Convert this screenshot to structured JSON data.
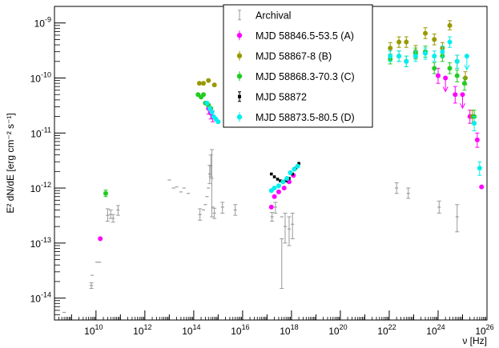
{
  "chart_data": {
    "type": "scatter",
    "title": "",
    "xlabel": "ν [Hz]",
    "ylabel": "E² dN/dE [erg cm⁻² s⁻¹]",
    "x_scale": "log",
    "y_scale": "log",
    "xlim": [
      200000000.0,
      1e+26
    ],
    "ylim": [
      4e-15,
      2e-09
    ],
    "grid": false,
    "legend_position": "top-center",
    "x_tick_labels": [
      {
        "exp": 10,
        "label": "10^10"
      },
      {
        "exp": 12,
        "label": "10^12"
      },
      {
        "exp": 14,
        "label": "10^14"
      },
      {
        "exp": 16,
        "label": "10^16"
      },
      {
        "exp": 18,
        "label": "10^18"
      },
      {
        "exp": 20,
        "label": "10^20"
      },
      {
        "exp": 22,
        "label": "10^22"
      },
      {
        "exp": 24,
        "label": "10^24"
      },
      {
        "exp": 26,
        "label": "10^26"
      }
    ],
    "y_tick_labels": [
      {
        "exp": -14,
        "label": "10^-14"
      },
      {
        "exp": -13,
        "label": "10^-13"
      },
      {
        "exp": -12,
        "label": "10^-12"
      },
      {
        "exp": -11,
        "label": "10^-11"
      },
      {
        "exp": -10,
        "label": "10^-10"
      },
      {
        "exp": -9,
        "label": "10^-9"
      }
    ],
    "series": [
      {
        "name": "Archival",
        "color": "#9a9a9a",
        "marker": "errorbar",
        "points": [
          {
            "x": 500000000.0,
            "y": 5.5e-15
          },
          {
            "x": 6500000000.0,
            "y": 1.7e-14,
            "ylo": 1.5e-14,
            "yhi": 1.9e-14
          },
          {
            "x": 7000000000.0,
            "y": 2.6e-14
          },
          {
            "x": 11000000000.0,
            "y": 4.5e-14
          },
          {
            "x": 14000000000.0,
            "y": 4.5e-14
          },
          {
            "x": 30000000000.0,
            "y": 3.2e-13,
            "ylo": 2.5e-13,
            "yhi": 4.2e-13
          },
          {
            "x": 40000000000.0,
            "y": 3.3e-13,
            "ylo": 2.8e-13,
            "yhi": 4e-13
          },
          {
            "x": 50000000000.0,
            "y": 2.8e-13,
            "ylo": 2.4e-13,
            "yhi": 3.3e-13
          },
          {
            "x": 80000000000.0,
            "y": 4e-13,
            "ylo": 3.2e-13,
            "yhi": 4.8e-13
          },
          {
            "x": 10000000000000.0,
            "y": 1.4e-12
          },
          {
            "x": 15000000000000.0,
            "y": 1e-12
          },
          {
            "x": 20000000000000.0,
            "y": 1.05e-12
          },
          {
            "x": 30000000000000.0,
            "y": 8.5e-13
          },
          {
            "x": 40000000000000.0,
            "y": 1e-12
          },
          {
            "x": 60000000000000.0,
            "y": 8e-13
          },
          {
            "x": 180000000000000.0,
            "y": 3.3e-13,
            "ylo": 2.6e-13,
            "yhi": 4.2e-13
          },
          {
            "x": 250000000000000.0,
            "y": 4e-13
          },
          {
            "x": 300000000000000.0,
            "y": 5e-13
          },
          {
            "x": 350000000000000.0,
            "y": 7e-13
          },
          {
            "x": 400000000000000.0,
            "y": 1e-12
          },
          {
            "x": 450000000000000.0,
            "y": 1.8e-12,
            "ylo": 1.2e-12,
            "yhi": 2.6e-12
          },
          {
            "x": 500000000000000.0,
            "y": 2.5e-12,
            "ylo": 1.6e-12,
            "yhi": 4e-12
          },
          {
            "x": 550000000000000.0,
            "y": 1.5e-12,
            "ylo": 3e-13,
            "yhi": 5e-12
          },
          {
            "x": 600000000000000.0,
            "y": 4.5e-13
          },
          {
            "x": 700000000000000.0,
            "y": 3.5e-13,
            "ylo": 2.8e-13,
            "yhi": 4.3e-13
          },
          {
            "x": 1500000000000000.0,
            "y": 4.5e-13,
            "ylo": 3.5e-13,
            "yhi": 5.5e-13
          },
          {
            "x": 5000000000000000.0,
            "y": 4e-13,
            "ylo": 3.2e-13,
            "yhi": 5e-13
          },
          {
            "x": 1.6e+17,
            "y": 3e-13,
            "ylo": 2.5e-13,
            "yhi": 3.6e-13
          },
          {
            "x": 2.2e+17,
            "y": 4.5e-13,
            "ylo": 3.5e-13,
            "yhi": 5.5e-13
          },
          {
            "x": 4e+17,
            "y": 3e-13,
            "ylo": 1.5e-14,
            "yhi": 1.2e-13
          },
          {
            "x": 5.5e+17,
            "y": 2e-13,
            "ylo": 1e-13,
            "yhi": 3.5e-13
          },
          {
            "x": 8e+17,
            "y": 1.8e-13,
            "ylo": 9e-14,
            "yhi": 3e-13
          },
          {
            "x": 1.1e+18,
            "y": 2.2e-13,
            "ylo": 1.2e-13,
            "yhi": 3.5e-13
          },
          {
            "x": 2e+22,
            "y": 1e-12,
            "ylo": 8e-13,
            "yhi": 1.25e-12
          },
          {
            "x": 6e+22,
            "y": 8e-13,
            "ylo": 6.5e-13,
            "yhi": 1e-12
          },
          {
            "x": 1.1e+24,
            "y": 4.5e-13,
            "ylo": 3.5e-13,
            "yhi": 5.8e-13
          },
          {
            "x": 6e+24,
            "y": 3e-13,
            "ylo": 1.6e-13,
            "yhi": 5e-13
          }
        ]
      },
      {
        "name": "MJD 58846.5-53.5 (A)",
        "color": "#ff00ff",
        "marker": "circle",
        "points": [
          {
            "x": 15000000000.0,
            "y": 1.2e-13
          },
          {
            "x": 400000000000000.0,
            "y": 2.8e-11,
            "ylo": 2.2e-11,
            "yhi": 3.4e-11
          },
          {
            "x": 500000000000000.0,
            "y": 2.3e-11,
            "ylo": 1.8e-11,
            "yhi": 2.8e-11
          },
          {
            "x": 600000000000000.0,
            "y": 2e-11,
            "ylo": 1.6e-11,
            "yhi": 2.5e-11
          },
          {
            "x": 1.5e+17,
            "y": 4.5e-13
          },
          {
            "x": 2e+17,
            "y": 7e-13
          },
          {
            "x": 3e+17,
            "y": 8.5e-13
          },
          {
            "x": 5e+17,
            "y": 1e-12
          },
          {
            "x": 8e+17,
            "y": 1.3e-12
          },
          {
            "x": 1.2e+18,
            "y": 1.7e-12
          },
          {
            "x": 1e+24,
            "y": 1.1e-10,
            "ylo": 8e-11,
            "yhi": 1.5e-10
          },
          {
            "x": 2e+24,
            "y": 1e-10,
            "ul": true
          },
          {
            "x": 5e+24,
            "y": 5e-11,
            "ylo": 3.5e-11,
            "yhi": 7e-11
          },
          {
            "x": 1e+25,
            "y": 5e-11,
            "ul": true
          },
          {
            "x": 2e+25,
            "y": 2e-11,
            "ylo": 1.5e-11,
            "yhi": 2.6e-11
          },
          {
            "x": 4e+25,
            "y": 7.5e-12,
            "ylo": 5.5e-12,
            "yhi": 1e-11
          },
          {
            "x": 6e+25,
            "y": 1.05e-12
          }
        ]
      },
      {
        "name": "MJD 58867-8 (B)",
        "color": "#999900",
        "marker": "circle",
        "points": [
          {
            "x": 170000000000000.0,
            "y": 8e-11
          },
          {
            "x": 250000000000000.0,
            "y": 8e-11
          },
          {
            "x": 400000000000000.0,
            "y": 9e-11
          },
          {
            "x": 700000000000000.0,
            "y": 7.5e-11
          },
          {
            "x": 1.1e+22,
            "y": 3.5e-10,
            "ylo": 2.7e-10,
            "yhi": 4.4e-10
          },
          {
            "x": 2.5e+22,
            "y": 4.5e-10,
            "ylo": 3.6e-10,
            "yhi": 5.6e-10
          },
          {
            "x": 5e+22,
            "y": 4.5e-10,
            "ylo": 3.6e-10,
            "yhi": 5.6e-10
          },
          {
            "x": 1.2e+23,
            "y": 3e-10,
            "ylo": 2.3e-10,
            "yhi": 3.9e-10
          },
          {
            "x": 3e+23,
            "y": 6.5e-10,
            "ylo": 5.2e-10,
            "yhi": 8.2e-10
          },
          {
            "x": 7e+23,
            "y": 5e-10,
            "ylo": 4e-10,
            "yhi": 6.3e-10
          },
          {
            "x": 1.5e+24,
            "y": 3.5e-10,
            "ylo": 2.8e-10,
            "yhi": 4.4e-10
          },
          {
            "x": 3e+24,
            "y": 9e-10,
            "ylo": 7.5e-10,
            "yhi": 1.1e-09
          },
          {
            "x": 6e+24,
            "y": 2e-10,
            "ylo": 1.5e-10,
            "yhi": 2.6e-10
          },
          {
            "x": 1.3e+25,
            "y": 1e-10,
            "ylo": 7.5e-11,
            "yhi": 1.3e-10
          },
          {
            "x": 2.5e+25,
            "y": 2e-11,
            "ylo": 1.5e-11,
            "yhi": 2.6e-11
          }
        ]
      },
      {
        "name": "MJD 58868.3-70.3 (C)",
        "color": "#22cc22",
        "marker": "circle",
        "points": [
          {
            "x": 25000000000.0,
            "y": 8e-13,
            "ylo": 7e-13,
            "yhi": 9.2e-13
          },
          {
            "x": 150000000000000.0,
            "y": 5e-11
          },
          {
            "x": 200000000000000.0,
            "y": 4.5e-11
          },
          {
            "x": 250000000000000.0,
            "y": 5e-11
          },
          {
            "x": 300000000000000.0,
            "y": 3.5e-11
          },
          {
            "x": 400000000000000.0,
            "y": 3.2e-11
          },
          {
            "x": 500000000000000.0,
            "y": 2.8e-11
          },
          {
            "x": 1.1e+22,
            "y": 2.2e-10,
            "ylo": 1.8e-10,
            "yhi": 2.7e-10
          },
          {
            "x": 2.5e+22,
            "y": 2.5e-10,
            "ylo": 2e-10,
            "yhi": 3.1e-10
          },
          {
            "x": 5e+22,
            "y": 2e-10,
            "ylo": 1.6e-10,
            "yhi": 2.5e-10
          },
          {
            "x": 1.2e+23,
            "y": 2.8e-10,
            "ylo": 2.2e-10,
            "yhi": 3.5e-10
          },
          {
            "x": 3e+23,
            "y": 3e-10,
            "ylo": 2.4e-10,
            "yhi": 3.8e-10
          },
          {
            "x": 7e+23,
            "y": 1.5e-10,
            "ylo": 1.2e-10,
            "yhi": 1.9e-10
          },
          {
            "x": 1.5e+24,
            "y": 2.5e-10,
            "ylo": 2e-10,
            "yhi": 3.1e-10
          },
          {
            "x": 3e+24,
            "y": 1.5e-10,
            "ylo": 1.2e-10,
            "yhi": 1.9e-10
          },
          {
            "x": 6e+24,
            "y": 1.1e-10,
            "ylo": 8.5e-11,
            "yhi": 1.4e-10
          },
          {
            "x": 1.2e+25,
            "y": 8e-11,
            "ylo": 6e-11,
            "yhi": 1e-10
          },
          {
            "x": 3e+25,
            "y": 2e-11,
            "ylo": 1.5e-11,
            "yhi": 2.6e-11
          }
        ]
      },
      {
        "name": "MJD 58872",
        "color": "#000000",
        "marker": "square",
        "points": [
          {
            "x": 1.5e+17,
            "y": 1.8e-12
          },
          {
            "x": 2e+17,
            "y": 1.6e-12
          },
          {
            "x": 2.7e+17,
            "y": 1.45e-12
          },
          {
            "x": 3.5e+17,
            "y": 1.35e-12
          },
          {
            "x": 4.5e+17,
            "y": 1.3e-12
          },
          {
            "x": 6e+17,
            "y": 1.35e-12
          },
          {
            "x": 8e+17,
            "y": 1.5e-12
          },
          {
            "x": 1.1e+18,
            "y": 1.8e-12
          },
          {
            "x": 1.5e+18,
            "y": 2.3e-12
          },
          {
            "x": 2e+18,
            "y": 2.8e-12
          }
        ]
      },
      {
        "name": "MJD 58873.5-80.5 (D)",
        "color": "#00eeee",
        "marker": "circle",
        "points": [
          {
            "x": 350000000000000.0,
            "y": 3.5e-11
          },
          {
            "x": 450000000000000.0,
            "y": 2.8e-11
          },
          {
            "x": 550000000000000.0,
            "y": 2.4e-11
          },
          {
            "x": 650000000000000.0,
            "y": 2e-11
          },
          {
            "x": 800000000000000.0,
            "y": 1.8e-11
          },
          {
            "x": 1000000000000000.0,
            "y": 1.6e-11
          },
          {
            "x": 1.5e+17,
            "y": 9e-13
          },
          {
            "x": 2e+17,
            "y": 1e-12
          },
          {
            "x": 3e+17,
            "y": 1.1e-12
          },
          {
            "x": 4.5e+17,
            "y": 1.3e-12
          },
          {
            "x": 6.5e+17,
            "y": 1.5e-12
          },
          {
            "x": 9e+17,
            "y": 1.9e-12
          },
          {
            "x": 1.3e+18,
            "y": 2.2e-12
          },
          {
            "x": 1.8e+18,
            "y": 2.5e-12
          },
          {
            "x": 1.1e+22,
            "y": 2.5e-10,
            "ylo": 2e-10,
            "yhi": 3.1e-10
          },
          {
            "x": 2.5e+22,
            "y": 2.5e-10,
            "ylo": 2e-10,
            "yhi": 3.1e-10
          },
          {
            "x": 5e+22,
            "y": 2e-10,
            "ylo": 1.6e-10,
            "yhi": 2.5e-10
          },
          {
            "x": 1.2e+23,
            "y": 2.5e-10,
            "ylo": 2e-10,
            "yhi": 3.1e-10
          },
          {
            "x": 3e+23,
            "y": 2.8e-10,
            "ylo": 2.2e-10,
            "yhi": 3.5e-10
          },
          {
            "x": 7e+23,
            "y": 2.5e-10,
            "ylo": 2e-10,
            "yhi": 3.1e-10
          },
          {
            "x": 1.5e+24,
            "y": 3e-10,
            "ylo": 2.4e-10,
            "yhi": 3.8e-10
          },
          {
            "x": 3e+24,
            "y": 4.5e-10,
            "ylo": 3.6e-10,
            "yhi": 5.6e-10
          },
          {
            "x": 6e+24,
            "y": 2e-10,
            "ylo": 1.5e-10,
            "yhi": 2.6e-10
          },
          {
            "x": 1.5e+25,
            "y": 2.5e-10,
            "ul": true
          },
          {
            "x": 3e+25,
            "y": 1.5e-11,
            "ylo": 1.1e-11,
            "yhi": 2e-11
          },
          {
            "x": 5e+25,
            "y": 2.3e-12,
            "ylo": 1.7e-12,
            "yhi": 3e-12
          }
        ]
      }
    ]
  }
}
